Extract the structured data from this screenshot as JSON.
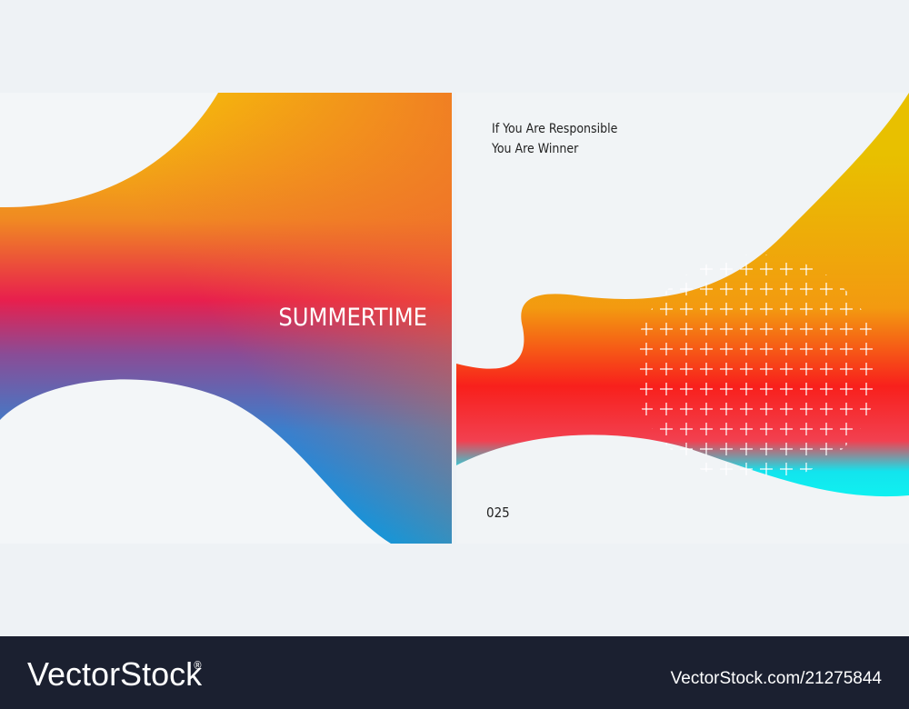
{
  "left_panel": {
    "title": "SUMMERTIME"
  },
  "right_panel": {
    "tagline": [
      "If You Are Responsible",
      "You Are Winner"
    ],
    "page_number": "025"
  },
  "footer": {
    "brand": "VectorStock",
    "registered": "®",
    "url": "VectorStock.com/21275844"
  }
}
